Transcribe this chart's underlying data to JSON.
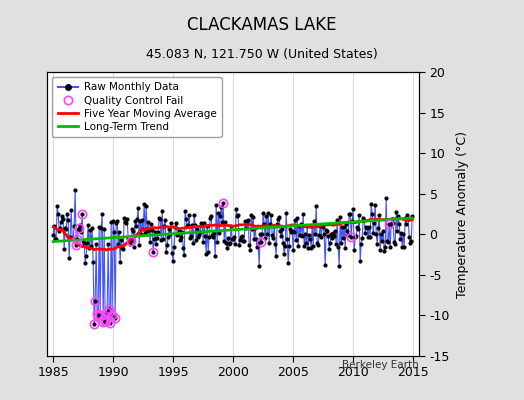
{
  "title": "CLACKAMAS LAKE",
  "subtitle": "45.083 N, 121.750 W (United States)",
  "ylabel": "Temperature Anomaly (°C)",
  "credit": "Berkeley Earth",
  "xlim": [
    1984.5,
    2015.5
  ],
  "ylim": [
    -15,
    20
  ],
  "yticks": [
    -15,
    -10,
    -5,
    0,
    5,
    10,
    15,
    20
  ],
  "xticks": [
    1985,
    1990,
    1995,
    2000,
    2005,
    2010,
    2015
  ],
  "bg_color": "#e0e0e0",
  "plot_bg_color": "#ffffff",
  "raw_line_color": "#4455ff",
  "raw_dot_color": "#000000",
  "qc_fail_color": "#ff44ff",
  "moving_avg_color": "#ff0000",
  "trend_color": "#00bb00",
  "legend_labels": [
    "Raw Monthly Data",
    "Quality Control Fail",
    "Five Year Moving Average",
    "Long-Term Trend"
  ],
  "seed": 12345
}
